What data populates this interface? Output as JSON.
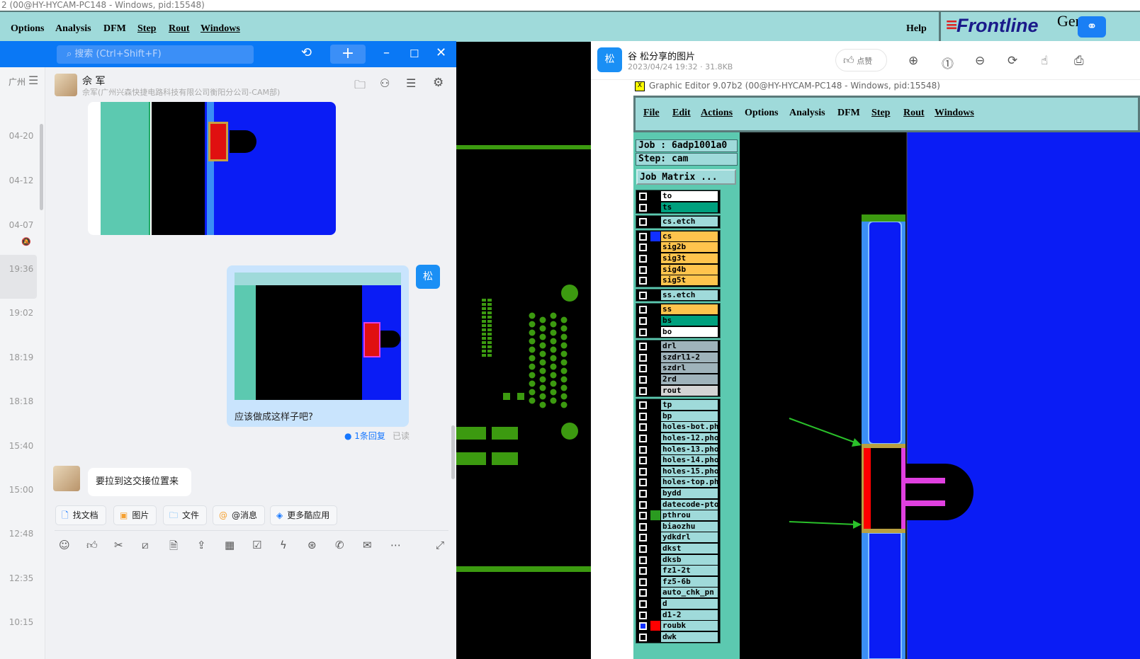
{
  "window": {
    "title": "2 (00@HY-HYCAM-PC148 - Windows, pid:15548)",
    "menu": [
      "Options",
      "Analysis",
      "DFM",
      "Step",
      "Rout",
      "Windows"
    ],
    "help": "Help",
    "logo": "Frontline",
    "logo_suffix": "Ger"
  },
  "chat": {
    "search_placeholder": "搜索 (Ctrl+Shift+F)",
    "sidebar_label": "广州",
    "contact": {
      "name": "佘 军",
      "org": "佘军(广州兴森快捷电路科技有限公司衡阳分公司-CAM部)"
    },
    "timestamps": [
      "04-20",
      "04-12",
      "04-07",
      "19:36",
      "19:02",
      "18:19",
      "18:18",
      "15:40",
      "15:00",
      "12:48",
      "12:35",
      "10:15"
    ],
    "messages": [
      {
        "from": "other",
        "type": "image"
      },
      {
        "from": "me",
        "avatar": "松",
        "type": "image",
        "text": "应该做成这样子吧?",
        "reply": "1条回复",
        "status": "已读"
      },
      {
        "from": "other",
        "text": "要拉到这交接位置来"
      }
    ],
    "chips": [
      "找文档",
      "图片",
      "文件",
      "@消息",
      "更多酷应用"
    ],
    "toolbar_icons": [
      "emoji-icon",
      "thumbs-up-icon",
      "scissors-icon",
      "slash-icon",
      "doc-icon",
      "upload-icon",
      "calendar-icon",
      "check-icon",
      "lightning-icon",
      "link-icon",
      "phone-icon",
      "mail-icon",
      "more-icon",
      "expand-icon"
    ]
  },
  "viewer": {
    "avatar": "松",
    "title": "谷 松分享的图片",
    "meta": "2023/04/24 19:32 · 31.8KB",
    "like": "点赞",
    "image": {
      "title": "Graphic Editor 9.07b2 (00@HY-HYCAM-PC148 - Windows, pid:15548)",
      "menu": [
        "File",
        "Edit",
        "Actions",
        "Options",
        "Analysis",
        "DFM",
        "Step",
        "Rout",
        "Windows"
      ],
      "job": "Job : 6adp1001a0",
      "step": "Step: cam",
      "job_matrix": "Job Matrix ...",
      "layers": [
        [
          {
            "n": "to",
            "c": "#ffffff"
          },
          {
            "n": "ts",
            "c": "#00a07e"
          }
        ],
        [
          {
            "n": "cs.etch",
            "c": "#9fdada"
          }
        ],
        [
          {
            "n": "cs",
            "c": "#ffc44d",
            "s": "#1030ff"
          },
          {
            "n": "sig2b",
            "c": "#ffc44d"
          },
          {
            "n": "sig3t",
            "c": "#ffc44d"
          },
          {
            "n": "sig4b",
            "c": "#ffc44d"
          },
          {
            "n": "sig5t",
            "c": "#ffc44d"
          }
        ],
        [
          {
            "n": "ss.etch",
            "c": "#9fdada"
          }
        ],
        [
          {
            "n": "ss",
            "c": "#ffc44d"
          },
          {
            "n": "bs",
            "c": "#00a07e"
          },
          {
            "n": "bo",
            "c": "#ffffff"
          }
        ],
        [
          {
            "n": "drl",
            "c": "#9fb3bb"
          },
          {
            "n": "szdrl1-2",
            "c": "#9fb3bb"
          },
          {
            "n": "szdrl",
            "c": "#9fb3bb"
          },
          {
            "n": "2rd",
            "c": "#9fb3bb"
          },
          {
            "n": "rout",
            "c": "#d4d4d4"
          }
        ],
        [
          {
            "n": "tp",
            "c": "#9fdada"
          },
          {
            "n": "bp",
            "c": "#9fdada"
          },
          {
            "n": "holes-bot.ph",
            "c": "#9fdada"
          },
          {
            "n": "holes-12.pho",
            "c": "#9fdada"
          },
          {
            "n": "holes-13.pho",
            "c": "#9fdada"
          },
          {
            "n": "holes-14.pho",
            "c": "#9fdada"
          },
          {
            "n": "holes-15.pho",
            "c": "#9fdada"
          },
          {
            "n": "holes-top.ph",
            "c": "#9fdada"
          },
          {
            "n": "bydd",
            "c": "#9fdada"
          },
          {
            "n": "datecode-pto",
            "c": "#9fdada"
          },
          {
            "n": "pthrou",
            "c": "#9fdada",
            "s": "#2a9a20"
          },
          {
            "n": "biaozhu",
            "c": "#9fdada"
          },
          {
            "n": "ydkdrl",
            "c": "#9fdada"
          },
          {
            "n": "dkst",
            "c": "#9fdada"
          },
          {
            "n": "dksb",
            "c": "#9fdada"
          },
          {
            "n": "fz1-2t",
            "c": "#9fdada"
          },
          {
            "n": "fz5-6b",
            "c": "#9fdada"
          },
          {
            "n": "auto_chk_pn",
            "c": "#9fdada"
          },
          {
            "n": "d",
            "c": "#9fdada"
          },
          {
            "n": "d1-2",
            "c": "#9fdada"
          },
          {
            "n": "roubk",
            "c": "#9fdada",
            "s": "#ff0000",
            "checked": true
          },
          {
            "n": "dwk",
            "c": "#9fdada"
          }
        ]
      ]
    }
  },
  "colors": {
    "chat_blue": "#0a78f5",
    "menu_teal": "#9fdada",
    "pcb_blue": "#0a1cf5",
    "pcb_green": "#3c9a10"
  }
}
